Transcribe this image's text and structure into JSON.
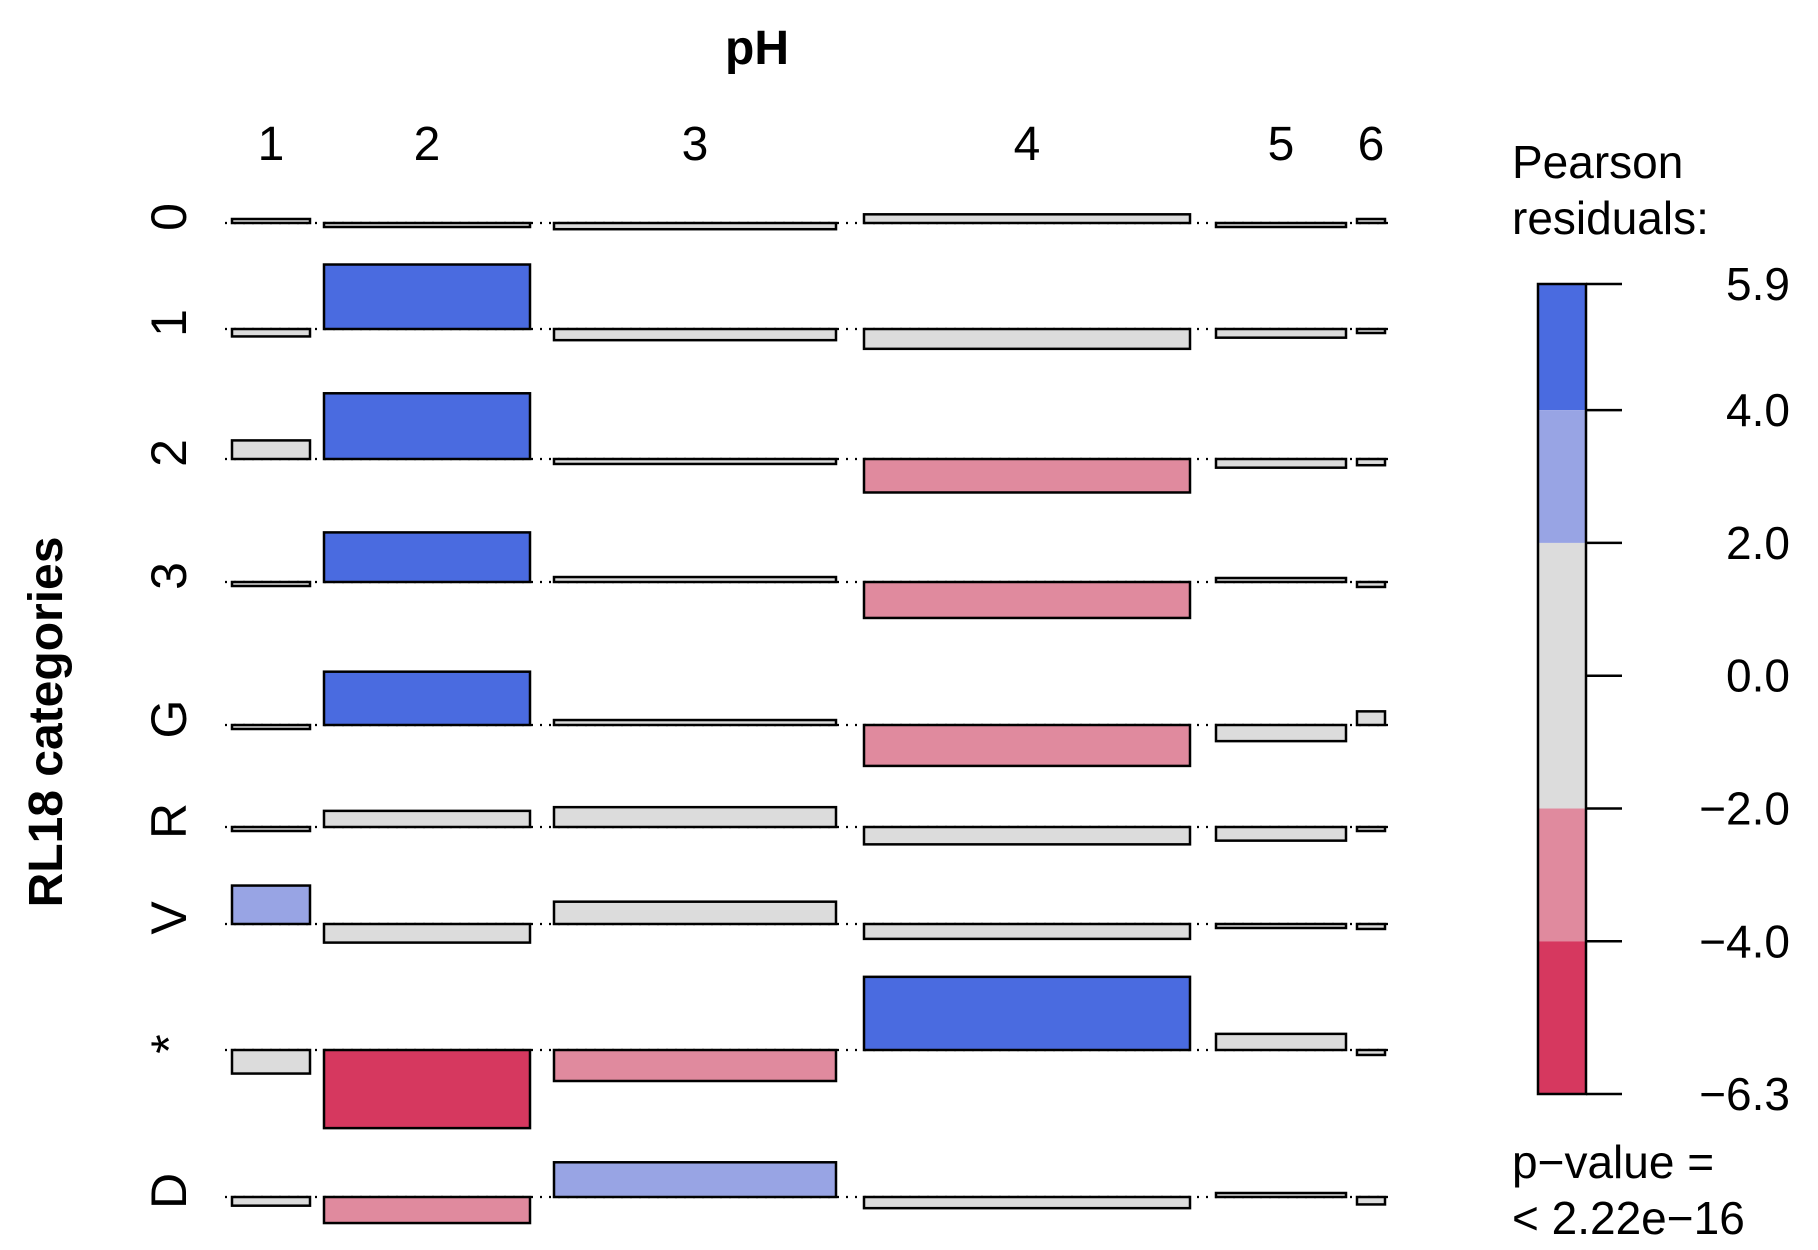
{
  "chart_data": {
    "type": "association plot",
    "title": "",
    "x_axis_label": "pH",
    "y_axis_label": "RL18 categories",
    "x_categories": [
      "1",
      "2",
      "3",
      "4",
      "5",
      "6"
    ],
    "y_categories": [
      "0",
      "1",
      "2",
      "3",
      "G",
      "R",
      "V",
      "*",
      "D"
    ],
    "residuals": [
      [
        0.0,
        -0.3,
        -0.5,
        0.7,
        -0.2,
        0.0
      ],
      [
        -0.6,
        5.2,
        -0.9,
        -1.6,
        -0.7,
        -0.1
      ],
      [
        1.5,
        5.3,
        -0.4,
        -2.7,
        -0.7,
        -0.5
      ],
      [
        -0.3,
        4.0,
        0.4,
        -2.9,
        0.2,
        -0.4
      ],
      [
        -0.1,
        4.3,
        0.4,
        -3.3,
        -1.3,
        1.1
      ],
      [
        -0.3,
        1.3,
        1.6,
        -1.4,
        -1.1,
        -0.1
      ],
      [
        3.1,
        -1.5,
        1.8,
        -1.2,
        -0.2,
        -0.4
      ],
      [
        -1.9,
        -6.3,
        -2.5,
        5.9,
        1.3,
        -0.4
      ],
      [
        -0.7,
        -2.1,
        2.8,
        -0.9,
        0.1,
        -0.6
      ]
    ],
    "legend": {
      "title_line1": "Pearson",
      "title_line2": "residuals:",
      "tick_labels": [
        "5.9",
        "4.0",
        "2.0",
        "0.0",
        "−2.0",
        "−4.0",
        "−6.3"
      ],
      "bins": [
        {
          "from": 4.0,
          "to": 5.9,
          "color": "#4a6be0"
        },
        {
          "from": 2.0,
          "to": 4.0,
          "color": "#98a4e4"
        },
        {
          "from": -2.0,
          "to": 2.0,
          "color": "#dcdcdc"
        },
        {
          "from": -4.0,
          "to": -2.0,
          "color": "#e08a9e"
        },
        {
          "from": -6.3,
          "to": -4.0,
          "color": "#d6385f"
        }
      ],
      "pvalue_line1": "p−value =",
      "pvalue_line2": "< 2.22e−16"
    }
  }
}
